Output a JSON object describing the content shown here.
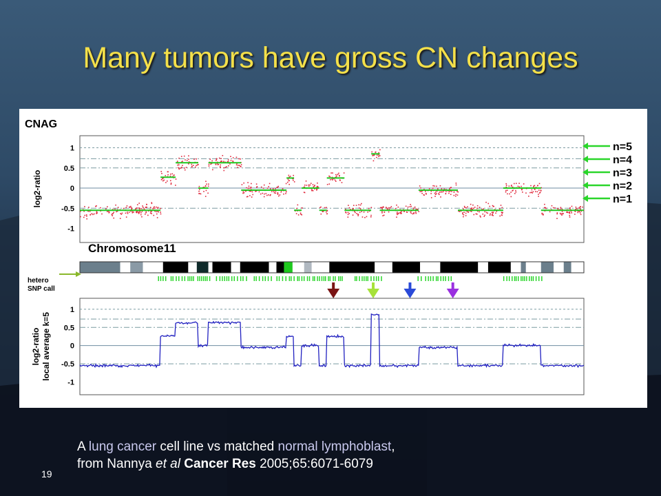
{
  "slide": {
    "title": "Many tumors have gross CN changes",
    "page_number": "19",
    "caption": {
      "line1_a": "A ",
      "line1_b": "lung cancer",
      "line1_c": " cell line vs matched ",
      "line1_d": "normal lymphoblast",
      "line1_e": ",",
      "line2_a": "from Nannya ",
      "line2_b": "et al",
      "line2_c": " ",
      "line2_d": "Cancer Res",
      "line2_e": " 2005;65:6071-6079"
    }
  },
  "colors": {
    "title": "#f4e04a",
    "points": "#e0283c",
    "segments": "#1ec81e",
    "smoothed_line": "#2020c0",
    "snp_calls": "#2ad62a",
    "arrow_darkred": "#7a1414",
    "arrow_lime": "#a6e23a",
    "arrow_blue": "#2a4ad8",
    "arrow_purple": "#9a30e0"
  },
  "chart_data": [
    {
      "type": "scatter",
      "panel_label": "CNAG",
      "ylabel": "log2-ratio",
      "ylim": [
        -1.35,
        1.3
      ],
      "yticks": [
        1,
        0.5,
        0,
        -0.5,
        -1
      ],
      "ytick_labels": [
        "1",
        "0.5",
        "0",
        "-0.5",
        "-1"
      ],
      "reference_lines": [
        {
          "label": "n=5",
          "y": 1.0
        },
        {
          "label": "n=4",
          "y": 0.73
        },
        {
          "label": "n=3",
          "y": 0.5
        },
        {
          "label": "n=2",
          "y": 0.0
        },
        {
          "label": "n=1",
          "y": -0.5
        }
      ],
      "x_range": [
        0,
        1
      ],
      "segments": [
        {
          "x0": 0.0,
          "x1": 0.16,
          "y": -0.55
        },
        {
          "x0": 0.16,
          "x1": 0.19,
          "y": 0.27
        },
        {
          "x0": 0.19,
          "x1": 0.235,
          "y": 0.63
        },
        {
          "x0": 0.235,
          "x1": 0.255,
          "y": 0.0
        },
        {
          "x0": 0.255,
          "x1": 0.32,
          "y": 0.63
        },
        {
          "x0": 0.32,
          "x1": 0.41,
          "y": -0.05
        },
        {
          "x0": 0.41,
          "x1": 0.425,
          "y": 0.25
        },
        {
          "x0": 0.425,
          "x1": 0.44,
          "y": -0.55
        },
        {
          "x0": 0.44,
          "x1": 0.475,
          "y": 0.0
        },
        {
          "x0": 0.475,
          "x1": 0.49,
          "y": -0.55
        },
        {
          "x0": 0.49,
          "x1": 0.525,
          "y": 0.25
        },
        {
          "x0": 0.525,
          "x1": 0.578,
          "y": -0.55
        },
        {
          "x0": 0.578,
          "x1": 0.595,
          "y": 0.85
        },
        {
          "x0": 0.595,
          "x1": 0.672,
          "y": -0.55
        },
        {
          "x0": 0.672,
          "x1": 0.75,
          "y": -0.05
        },
        {
          "x0": 0.75,
          "x1": 0.84,
          "y": -0.55
        },
        {
          "x0": 0.84,
          "x1": 0.915,
          "y": 0.0
        },
        {
          "x0": 0.915,
          "x1": 1.0,
          "y": -0.55
        }
      ],
      "side_labels": [
        "n=5",
        "n=4",
        "n=3",
        "n=2",
        "n=1"
      ]
    },
    {
      "type": "heatmap",
      "label": "Chromosome11",
      "side_label": [
        "hetero",
        "SNP call"
      ],
      "bands": [
        {
          "x0": 0.0,
          "x1": 0.08,
          "shade": "#6b7f8c"
        },
        {
          "x0": 0.08,
          "x1": 0.1,
          "shade": "#ffffff"
        },
        {
          "x0": 0.1,
          "x1": 0.125,
          "shade": "#8a9aa6"
        },
        {
          "x0": 0.125,
          "x1": 0.165,
          "shade": "#ffffff"
        },
        {
          "x0": 0.165,
          "x1": 0.215,
          "shade": "#000000"
        },
        {
          "x0": 0.215,
          "x1": 0.232,
          "shade": "#ffffff"
        },
        {
          "x0": 0.232,
          "x1": 0.255,
          "shade": "#0e2a2a"
        },
        {
          "x0": 0.255,
          "x1": 0.263,
          "shade": "#ffffff"
        },
        {
          "x0": 0.263,
          "x1": 0.3,
          "shade": "#000000"
        },
        {
          "x0": 0.3,
          "x1": 0.318,
          "shade": "#ffffff"
        },
        {
          "x0": 0.318,
          "x1": 0.375,
          "shade": "#000000"
        },
        {
          "x0": 0.375,
          "x1": 0.39,
          "shade": "#ffffff"
        },
        {
          "x0": 0.39,
          "x1": 0.405,
          "shade": "#000000"
        },
        {
          "x0": 0.405,
          "x1": 0.422,
          "shade": "#1ec81e"
        },
        {
          "x0": 0.422,
          "x1": 0.445,
          "shade": "#ffffff"
        },
        {
          "x0": 0.445,
          "x1": 0.46,
          "shade": "#b0b8c0"
        },
        {
          "x0": 0.46,
          "x1": 0.495,
          "shade": "#ffffff"
        },
        {
          "x0": 0.495,
          "x1": 0.585,
          "shade": "#000000"
        },
        {
          "x0": 0.585,
          "x1": 0.62,
          "shade": "#ffffff"
        },
        {
          "x0": 0.62,
          "x1": 0.675,
          "shade": "#000000"
        },
        {
          "x0": 0.675,
          "x1": 0.715,
          "shade": "#ffffff"
        },
        {
          "x0": 0.715,
          "x1": 0.79,
          "shade": "#000000"
        },
        {
          "x0": 0.79,
          "x1": 0.81,
          "shade": "#ffffff"
        },
        {
          "x0": 0.81,
          "x1": 0.855,
          "shade": "#000000"
        },
        {
          "x0": 0.855,
          "x1": 0.875,
          "shade": "#ffffff"
        },
        {
          "x0": 0.875,
          "x1": 0.885,
          "shade": "#6b7f8c"
        },
        {
          "x0": 0.885,
          "x1": 0.915,
          "shade": "#ffffff"
        },
        {
          "x0": 0.915,
          "x1": 0.94,
          "shade": "#6b7f8c"
        },
        {
          "x0": 0.94,
          "x1": 0.96,
          "shade": "#ffffff"
        },
        {
          "x0": 0.96,
          "x1": 0.975,
          "shade": "#6b7f8c"
        },
        {
          "x0": 0.975,
          "x1": 1.0,
          "shade": "#ffffff"
        }
      ],
      "snp_call_ranges": [
        [
          0.155,
          0.17
        ],
        [
          0.18,
          0.225
        ],
        [
          0.233,
          0.258
        ],
        [
          0.27,
          0.33
        ],
        [
          0.345,
          0.38
        ],
        [
          0.39,
          0.52
        ],
        [
          0.545,
          0.6
        ],
        [
          0.67,
          0.68
        ],
        [
          0.685,
          0.74
        ],
        [
          0.84,
          0.92
        ]
      ],
      "arrows": [
        {
          "x": 0.503,
          "color": "arrow_darkred"
        },
        {
          "x": 0.582,
          "color": "arrow_lime"
        },
        {
          "x": 0.655,
          "color": "arrow_blue"
        },
        {
          "x": 0.74,
          "color": "arrow_purple"
        }
      ]
    },
    {
      "type": "line",
      "ylabel": "log2-ratio",
      "ylabel2": "local average k=5",
      "ylim": [
        -1.35,
        1.3
      ],
      "yticks": [
        1,
        0.5,
        0,
        -0.5,
        -1
      ],
      "ytick_labels": [
        "1",
        "0.5",
        "0",
        "-0.5",
        "-1"
      ],
      "reference_lines": [
        1.0,
        0.73,
        0.5,
        0.0,
        -0.5
      ],
      "x_range": [
        0,
        1
      ]
    }
  ]
}
